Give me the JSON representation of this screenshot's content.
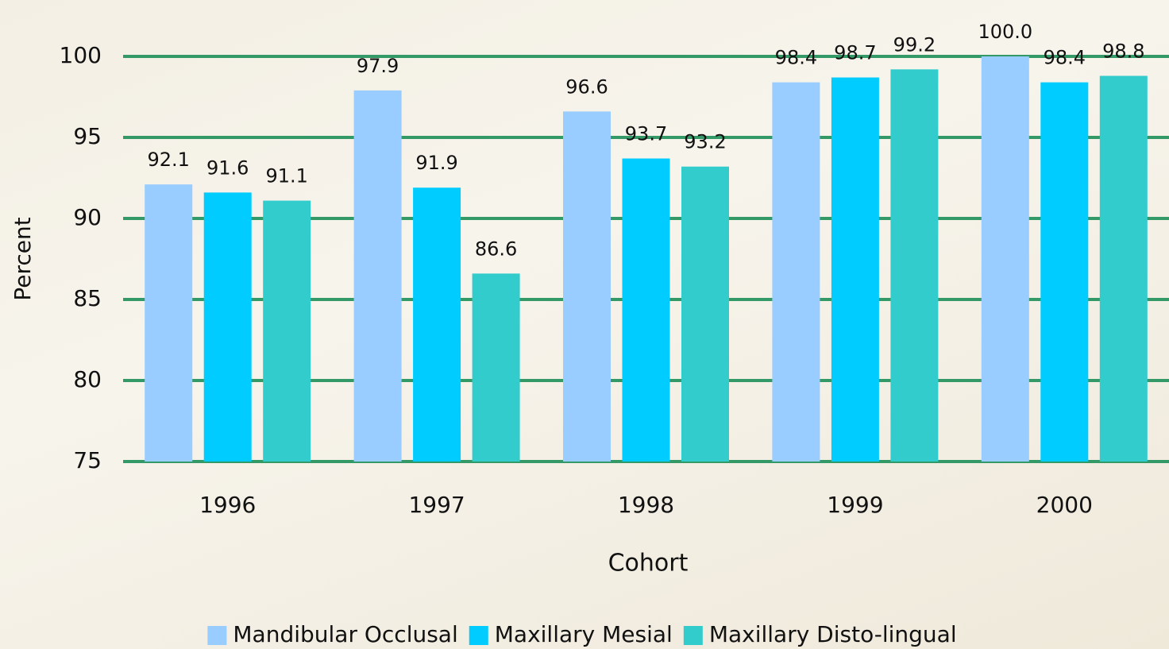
{
  "chart_data": {
    "type": "bar",
    "categories": [
      "1996",
      "1997",
      "1998",
      "1999",
      "2000"
    ],
    "series": [
      {
        "name": "Mandibular Occlusal",
        "color": "#99ccff",
        "values": [
          92.1,
          97.9,
          96.6,
          98.4,
          100
        ],
        "value_labels": [
          "92.1",
          "97.9",
          "96.6",
          "98.4",
          "100.0"
        ]
      },
      {
        "name": "Maxillary Mesial",
        "color": "#00ccff",
        "values": [
          91.6,
          91.9,
          93.7,
          98.7,
          98.4
        ]
      },
      {
        "name": "Maxillary Disto-lingual",
        "color": "#33cccc",
        "values": [
          91.1,
          86.6,
          93.2,
          99.2,
          98.8
        ]
      }
    ],
    "xlabel": "Cohort",
    "ylabel": "Percent",
    "ylim": [
      75,
      100
    ],
    "yticks": [
      75,
      80,
      85,
      90,
      95,
      100
    ],
    "grid": true,
    "grid_color": "#339966",
    "legend": "bottom"
  }
}
